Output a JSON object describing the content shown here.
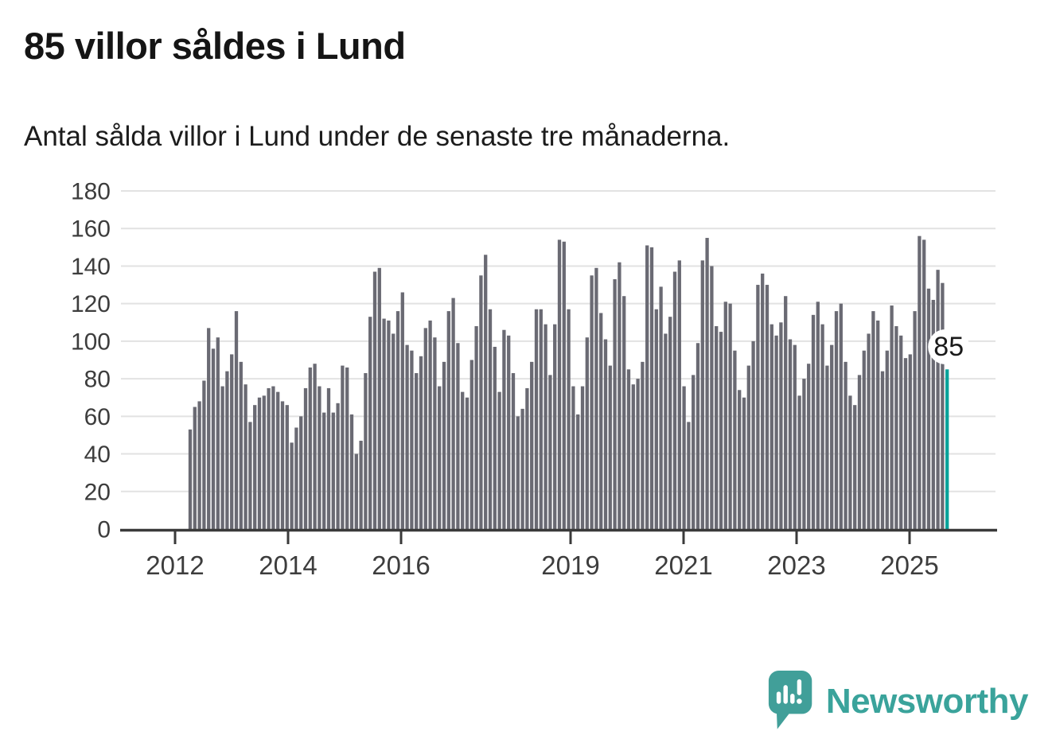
{
  "header": {
    "title": "85 villor såldes i Lund",
    "subtitle": "Antal sålda villor i Lund under de senaste tre månaderna."
  },
  "chart_data": {
    "type": "bar",
    "title": "85 villor såldes i Lund",
    "subtitle": "Antal sålda villor i Lund under de senaste tre månaderna.",
    "xlabel": "",
    "ylabel": "",
    "ylim": [
      0,
      180
    ],
    "yticks": [
      0,
      20,
      40,
      60,
      80,
      100,
      120,
      140,
      160,
      180
    ],
    "xtick_labels": [
      "2012",
      "2014",
      "2016",
      "2019",
      "2021",
      "2023",
      "2025"
    ],
    "grid": true,
    "legend": "none",
    "frequency": "monthly, rolling 3-month totals 2012-2025",
    "values": [
      53,
      65,
      68,
      79,
      107,
      96,
      102,
      76,
      84,
      93,
      116,
      89,
      77,
      57,
      66,
      70,
      71,
      75,
      76,
      73,
      68,
      66,
      46,
      54,
      60,
      75,
      86,
      88,
      76,
      62,
      75,
      62,
      67,
      87,
      86,
      61,
      40,
      47,
      83,
      113,
      137,
      139,
      112,
      111,
      104,
      116,
      126,
      98,
      95,
      83,
      92,
      107,
      111,
      102,
      76,
      89,
      116,
      123,
      99,
      73,
      70,
      90,
      108,
      135,
      146,
      117,
      97,
      73,
      106,
      103,
      83,
      60,
      64,
      75,
      89,
      117,
      117,
      109,
      82,
      109,
      154,
      153,
      117,
      76,
      61,
      76,
      102,
      135,
      139,
      115,
      101,
      87,
      133,
      142,
      124,
      85,
      77,
      80,
      89,
      151,
      150,
      117,
      129,
      104,
      113,
      137,
      143,
      76,
      57,
      82,
      99,
      143,
      155,
      140,
      108,
      105,
      121,
      120,
      95,
      74,
      70,
      87,
      100,
      130,
      136,
      130,
      109,
      103,
      110,
      124,
      101,
      98,
      71,
      80,
      88,
      114,
      121,
      109,
      87,
      98,
      116,
      120,
      89,
      71,
      66,
      82,
      95,
      104,
      116,
      111,
      84,
      95,
      119,
      108,
      103,
      91,
      93,
      116,
      156,
      154,
      128,
      122,
      138,
      131,
      85
    ],
    "highlight": {
      "index": 164,
      "value": 85,
      "label": "85",
      "color": "#04a29a"
    },
    "bar_color": "#6a6a73",
    "grid_color": "#e2e2e2",
    "axis_color": "#3a3a3a",
    "tick_label_color": "#3d3d3d",
    "annotation_text_color": "#1a1a1a"
  },
  "footer": {
    "brand": "Newsworthy",
    "logo_icon": "speech-bubble-bar-chart-icon",
    "brand_color": "#3aa39b",
    "logo_fill": "#419f99"
  }
}
